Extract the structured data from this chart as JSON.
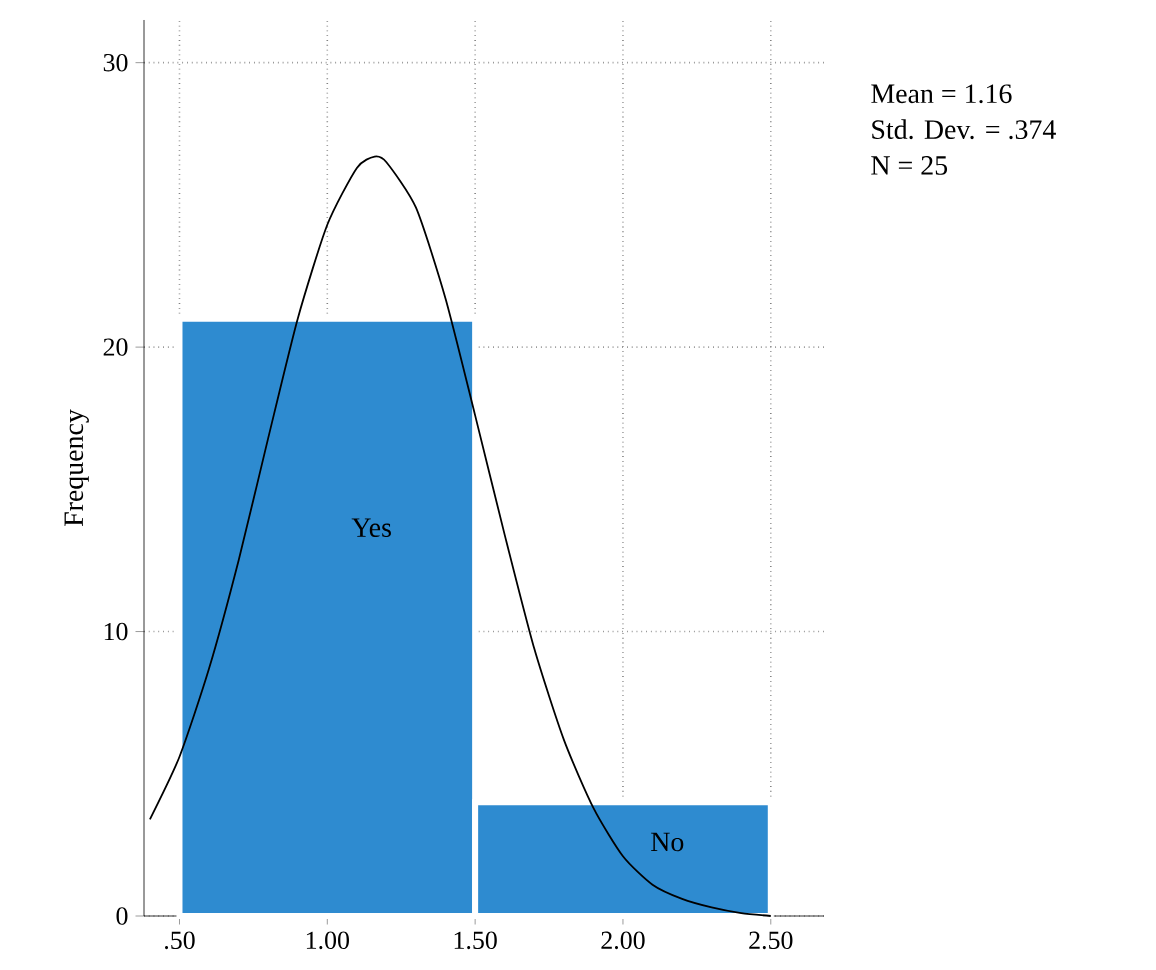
{
  "chart_data": {
    "type": "histogram",
    "ylabel": "Frequency",
    "bins": [
      0.5,
      1.5,
      2.5
    ],
    "values": [
      21,
      4
    ],
    "color": "#2e8bd0",
    "series": [
      {
        "type": "line",
        "color": "#000000",
        "x": [
          0.4,
          0.5,
          0.6,
          0.7,
          0.8,
          0.9,
          1.0,
          1.1,
          1.16,
          1.2,
          1.3,
          1.4,
          1.5,
          1.6,
          1.7,
          1.8,
          1.9,
          2.0,
          2.1,
          2.2,
          2.3,
          2.4,
          2.5
        ],
        "values": [
          3.4,
          5.6,
          8.7,
          12.5,
          16.8,
          21.0,
          24.3,
          26.3,
          26.7,
          26.5,
          24.9,
          21.7,
          17.6,
          13.4,
          9.4,
          6.2,
          3.8,
          2.1,
          1.1,
          0.6,
          0.3,
          0.1,
          0.0
        ]
      }
    ],
    "annotations": [
      "Yes",
      "No",
      "Mean = 1.16",
      "Std. Dev. = .374",
      "N = 25"
    ],
    "xlim": [
      0.38,
      2.68
    ],
    "ylim": [
      0,
      31.5
    ],
    "xticks": [
      {
        "value": 0.5,
        "label": ".50"
      },
      {
        "value": 1.0,
        "label": "1.00"
      },
      {
        "value": 1.5,
        "label": "1.50"
      },
      {
        "value": 2.0,
        "label": "2.00"
      },
      {
        "value": 2.5,
        "label": "2.50"
      }
    ],
    "yticks": [
      0,
      10,
      20,
      30
    ],
    "grid": true
  }
}
